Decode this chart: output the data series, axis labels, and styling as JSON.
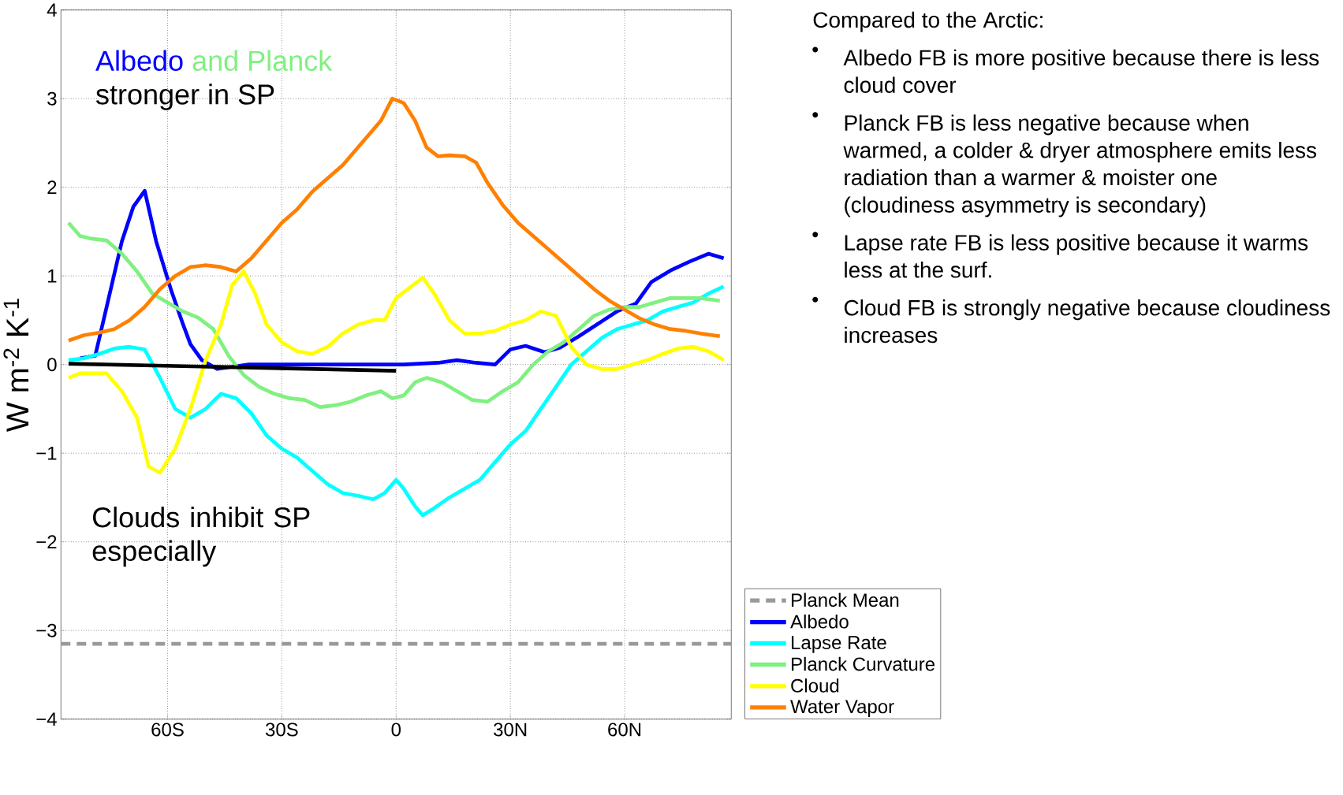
{
  "chart_data": {
    "type": "line",
    "ylabel": "W m$^{-2}$ K$^{-1}$",
    "xlim": [
      -88,
      88
    ],
    "ylim": [
      -4,
      4
    ],
    "xticks": [
      {
        "value": -60,
        "label": "60S"
      },
      {
        "value": -30,
        "label": "30S"
      },
      0,
      {
        "value": 30,
        "label": "30N"
      },
      {
        "value": 60,
        "label": "60N"
      }
    ],
    "yticks": [
      {
        "value": -4,
        "label": "−4"
      },
      {
        "value": -3,
        "label": "−3"
      },
      {
        "value": -2,
        "label": "−2"
      },
      {
        "value": -1,
        "label": "−1"
      },
      0,
      1,
      2,
      3,
      4
    ],
    "grid": true,
    "legend": "bottom right",
    "annotations": [
      "Albedo",
      "and Planck",
      "stronger in SP",
      "Clouds inhibit SP especially",
      "Compared to the Arctic:",
      "Albedo FB is more positive because there is less cloud cover",
      "Planck FB is less negative because when warmed, a colder & dryer atmosphere emits less radiation than a warmer & moister one (cloudiness asymmetry is secondary)",
      "Lapse rate FB is less positive because it warms less at the surf.",
      "Cloud FB is strongly negative because cloudiness increases"
    ],
    "series": [
      {
        "name": "Planck Mean",
        "color": "#999999",
        "line_style": "dashed",
        "x": [
          -88,
          88
        ],
        "values": [
          -3.15,
          -3.15
        ]
      },
      {
        "name": "Albedo",
        "color": "#0000ff",
        "x": [
          -83,
          -79,
          -76,
          -72,
          -69,
          -66,
          -63,
          -59,
          -56,
          -54,
          -51,
          -47,
          -39,
          -30,
          -14,
          2,
          11,
          16,
          21,
          26,
          30,
          34,
          39,
          43,
          48,
          53,
          58,
          63,
          67,
          72,
          77,
          82,
          86
        ],
        "values": [
          0.07,
          0.1,
          0.65,
          1.39,
          1.78,
          1.96,
          1.39,
          0.83,
          0.46,
          0.23,
          0.05,
          -0.05,
          0.0,
          0.0,
          0.0,
          0.0,
          0.02,
          0.05,
          0.02,
          0.0,
          0.17,
          0.21,
          0.14,
          0.19,
          0.32,
          0.46,
          0.6,
          0.69,
          0.93,
          1.06,
          1.16,
          1.25,
          1.2
        ]
      },
      {
        "name": "Lapse Rate",
        "color": "#00ffff",
        "x": [
          -86,
          -82,
          -78,
          -74,
          -70,
          -66,
          -62,
          -58,
          -54,
          -50,
          -46,
          -42,
          -38,
          -34,
          -30,
          -26,
          -22,
          -18,
          -14,
          -10,
          -6,
          -3,
          0,
          2,
          5,
          7,
          10,
          14,
          18,
          22,
          26,
          30,
          34,
          38,
          42,
          46,
          50,
          54,
          58,
          62,
          66,
          70,
          74,
          78,
          82,
          86
        ],
        "values": [
          0.05,
          0.07,
          0.12,
          0.18,
          0.2,
          0.17,
          -0.15,
          -0.5,
          -0.6,
          -0.5,
          -0.33,
          -0.38,
          -0.55,
          -0.8,
          -0.95,
          -1.05,
          -1.2,
          -1.35,
          -1.45,
          -1.48,
          -1.52,
          -1.45,
          -1.3,
          -1.4,
          -1.6,
          -1.7,
          -1.62,
          -1.5,
          -1.4,
          -1.3,
          -1.1,
          -0.9,
          -0.75,
          -0.5,
          -0.25,
          0.0,
          0.15,
          0.3,
          0.4,
          0.45,
          0.5,
          0.6,
          0.65,
          0.7,
          0.8,
          0.88
        ]
      },
      {
        "name": "Planck Curvature",
        "color": "#80f080",
        "x": [
          -86,
          -83,
          -80,
          -76,
          -72,
          -68,
          -64,
          -60,
          -56,
          -52,
          -48,
          -44,
          -40,
          -36,
          -32,
          -28,
          -24,
          -20,
          -16,
          -12,
          -8,
          -4,
          -1,
          2,
          5,
          8,
          12,
          16,
          20,
          24,
          28,
          32,
          36,
          40,
          44,
          48,
          52,
          56,
          60,
          64,
          68,
          72,
          76,
          80,
          85
        ],
        "values": [
          1.6,
          1.45,
          1.42,
          1.4,
          1.25,
          1.05,
          0.8,
          0.7,
          0.6,
          0.53,
          0.4,
          0.1,
          -0.12,
          -0.25,
          -0.33,
          -0.38,
          -0.4,
          -0.48,
          -0.46,
          -0.42,
          -0.35,
          -0.3,
          -0.38,
          -0.35,
          -0.2,
          -0.15,
          -0.2,
          -0.3,
          -0.4,
          -0.42,
          -0.3,
          -0.2,
          0.0,
          0.15,
          0.25,
          0.4,
          0.55,
          0.62,
          0.65,
          0.65,
          0.7,
          0.75,
          0.75,
          0.75,
          0.72
        ]
      },
      {
        "name": "Cloud",
        "color": "#ffff00",
        "x": [
          -86,
          -83,
          -80,
          -76,
          -72,
          -68,
          -65,
          -62,
          -58,
          -54,
          -50,
          -46,
          -43,
          -40,
          -37,
          -34,
          -30,
          -26,
          -22,
          -18,
          -14,
          -10,
          -6,
          -3,
          0,
          3,
          7,
          10,
          14,
          18,
          22,
          26,
          30,
          34,
          38,
          42,
          46,
          50,
          54,
          58,
          62,
          66,
          70,
          74,
          78,
          82,
          86
        ],
        "values": [
          -0.15,
          -0.1,
          -0.1,
          -0.1,
          -0.3,
          -0.6,
          -1.15,
          -1.22,
          -0.95,
          -0.5,
          0.05,
          0.45,
          0.9,
          1.05,
          0.8,
          0.45,
          0.25,
          0.15,
          0.12,
          0.2,
          0.35,
          0.45,
          0.5,
          0.5,
          0.75,
          0.85,
          0.98,
          0.8,
          0.5,
          0.35,
          0.35,
          0.38,
          0.45,
          0.5,
          0.6,
          0.55,
          0.2,
          0.0,
          -0.05,
          -0.05,
          0.0,
          0.05,
          0.12,
          0.18,
          0.2,
          0.15,
          0.05
        ]
      },
      {
        "name": "Water Vapor",
        "color": "#ff8000",
        "x": [
          -86,
          -82,
          -78,
          -74,
          -70,
          -66,
          -62,
          -58,
          -54,
          -50,
          -46,
          -42,
          -38,
          -34,
          -30,
          -26,
          -22,
          -18,
          -14,
          -10,
          -6,
          -4,
          -1,
          2,
          5,
          8,
          11,
          14,
          18,
          21,
          24,
          28,
          32,
          36,
          40,
          44,
          48,
          52,
          56,
          60,
          64,
          68,
          72,
          76,
          80,
          85
        ],
        "values": [
          0.27,
          0.33,
          0.36,
          0.4,
          0.5,
          0.65,
          0.85,
          1.0,
          1.1,
          1.12,
          1.1,
          1.05,
          1.2,
          1.4,
          1.6,
          1.75,
          1.95,
          2.1,
          2.25,
          2.45,
          2.65,
          2.75,
          3.0,
          2.95,
          2.75,
          2.45,
          2.35,
          2.36,
          2.35,
          2.28,
          2.05,
          1.8,
          1.6,
          1.45,
          1.3,
          1.15,
          1.0,
          0.85,
          0.72,
          0.62,
          0.52,
          0.45,
          0.4,
          0.38,
          0.35,
          0.32
        ]
      },
      {
        "color": "#000000",
        "x": [
          -86,
          0
        ],
        "values": [
          0.01,
          -0.07
        ]
      }
    ]
  }
}
